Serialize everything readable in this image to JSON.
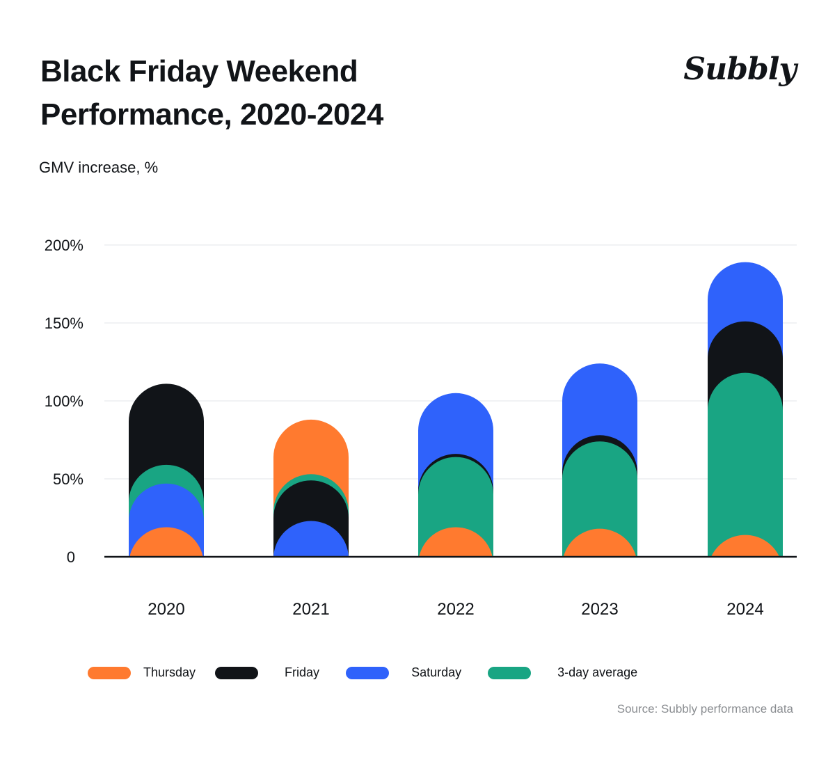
{
  "title_line1": "Black Friday Weekend",
  "title_line2": "Performance, 2020-2024",
  "brand": "Subbly",
  "source": "Source: Subbly performance data",
  "colors": {
    "thursday": "#ff7a2f",
    "friday": "#111418",
    "saturday": "#2f62fb",
    "average": "#19a583",
    "grid": "#e3e5e8",
    "axis": "#111418"
  },
  "chart_data": {
    "type": "bar",
    "title": "Black Friday Weekend Performance, 2020-2024",
    "ylabel": "GMV increase, %",
    "xlabel": "",
    "ylim": [
      0,
      200
    ],
    "yticks": [
      0,
      50,
      100,
      150,
      200
    ],
    "ytick_labels": [
      "0",
      "50%",
      "100%",
      "150%",
      "200%"
    ],
    "categories": [
      "2020",
      "2021",
      "2022",
      "2023",
      "2024"
    ],
    "layout": "overlapping",
    "series": [
      {
        "name": "Thursday",
        "color_key": "thursday",
        "values": [
          19,
          88,
          19,
          18,
          14
        ]
      },
      {
        "name": "Friday",
        "color_key": "friday",
        "values": [
          111,
          49,
          66,
          78,
          151
        ]
      },
      {
        "name": "Saturday",
        "color_key": "saturday",
        "values": [
          47,
          23,
          105,
          124,
          189
        ]
      },
      {
        "name": "3-day average",
        "color_key": "average",
        "values": [
          59,
          53,
          64,
          74,
          118
        ]
      }
    ],
    "legend_position": "bottom",
    "grid": true
  }
}
